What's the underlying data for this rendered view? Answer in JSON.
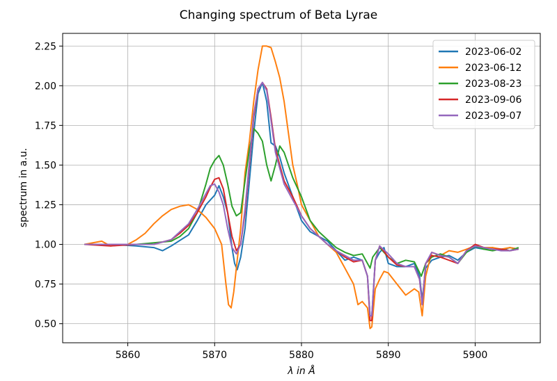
{
  "chart_data": {
    "type": "line",
    "title": "Changing spectrum of Beta Lyrae",
    "xlabel": "λ in Å",
    "ylabel": "spectrum in a.u.",
    "xlim": [
      5852.5,
      5907.5
    ],
    "ylim": [
      0.38,
      2.33
    ],
    "xticks": [
      5860,
      5870,
      5880,
      5890,
      5900
    ],
    "yticks": [
      0.5,
      0.75,
      1.0,
      1.25,
      1.5,
      1.75,
      2.0,
      2.25
    ],
    "xtick_labels": [
      "5860",
      "5870",
      "5880",
      "5890",
      "5900"
    ],
    "ytick_labels": [
      "0.50",
      "0.75",
      "1.00",
      "1.25",
      "1.50",
      "1.75",
      "2.00",
      "2.25"
    ],
    "grid": true,
    "legend_position": "top-right",
    "series": [
      {
        "name": "2023-06-02",
        "color": "#1f77b4",
        "points": [
          [
            5855,
            1.0
          ],
          [
            5858,
            1.0
          ],
          [
            5861,
            0.99
          ],
          [
            5863,
            0.98
          ],
          [
            5864,
            0.96
          ],
          [
            5865,
            0.99
          ],
          [
            5867,
            1.06
          ],
          [
            5868,
            1.15
          ],
          [
            5869,
            1.25
          ],
          [
            5870,
            1.31
          ],
          [
            5870.5,
            1.37
          ],
          [
            5871,
            1.3
          ],
          [
            5871.5,
            1.2
          ],
          [
            5872,
            0.98
          ],
          [
            5872.3,
            0.88
          ],
          [
            5872.6,
            0.84
          ],
          [
            5873,
            0.92
          ],
          [
            5873.5,
            1.1
          ],
          [
            5874,
            1.4
          ],
          [
            5874.5,
            1.7
          ],
          [
            5875,
            1.95
          ],
          [
            5875.5,
            2.02
          ],
          [
            5876,
            1.9
          ],
          [
            5876.5,
            1.64
          ],
          [
            5877,
            1.62
          ],
          [
            5877.5,
            1.55
          ],
          [
            5878,
            1.45
          ],
          [
            5879,
            1.3
          ],
          [
            5880,
            1.15
          ],
          [
            5881,
            1.08
          ],
          [
            5882,
            1.05
          ],
          [
            5883,
            1.02
          ],
          [
            5884,
            0.96
          ],
          [
            5885,
            0.9
          ],
          [
            5886,
            0.92
          ],
          [
            5887,
            0.9
          ],
          [
            5887.6,
            0.8
          ],
          [
            5887.9,
            0.55
          ],
          [
            5888.1,
            0.55
          ],
          [
            5888.5,
            0.9
          ],
          [
            5889,
            0.95
          ],
          [
            5889.5,
            0.98
          ],
          [
            5890,
            0.88
          ],
          [
            5891,
            0.86
          ],
          [
            5892,
            0.86
          ],
          [
            5893,
            0.88
          ],
          [
            5893.6,
            0.8
          ],
          [
            5893.9,
            0.65
          ],
          [
            5894.3,
            0.85
          ],
          [
            5895,
            0.9
          ],
          [
            5896,
            0.92
          ],
          [
            5897,
            0.93
          ],
          [
            5898,
            0.9
          ],
          [
            5899,
            0.95
          ],
          [
            5900,
            0.98
          ],
          [
            5901,
            0.97
          ],
          [
            5902,
            0.98
          ],
          [
            5903,
            0.96
          ],
          [
            5904,
            0.98
          ],
          [
            5905,
            0.97
          ]
        ]
      },
      {
        "name": "2023-06-12",
        "color": "#ff7f0e",
        "points": [
          [
            5855,
            1.0
          ],
          [
            5857,
            1.02
          ],
          [
            5858,
            0.99
          ],
          [
            5860,
            1.0
          ],
          [
            5861,
            1.03
          ],
          [
            5862,
            1.07
          ],
          [
            5863,
            1.13
          ],
          [
            5864,
            1.18
          ],
          [
            5865,
            1.22
          ],
          [
            5866,
            1.24
          ],
          [
            5867,
            1.25
          ],
          [
            5868,
            1.22
          ],
          [
            5869,
            1.17
          ],
          [
            5870,
            1.1
          ],
          [
            5870.8,
            1.0
          ],
          [
            5871.3,
            0.75
          ],
          [
            5871.6,
            0.62
          ],
          [
            5871.9,
            0.6
          ],
          [
            5872.2,
            0.7
          ],
          [
            5872.6,
            0.9
          ],
          [
            5873,
            1.1
          ],
          [
            5873.5,
            1.45
          ],
          [
            5874,
            1.65
          ],
          [
            5874.5,
            1.9
          ],
          [
            5875,
            2.1
          ],
          [
            5875.5,
            2.25
          ],
          [
            5876,
            2.25
          ],
          [
            5876.5,
            2.24
          ],
          [
            5877,
            2.15
          ],
          [
            5877.5,
            2.05
          ],
          [
            5878,
            1.9
          ],
          [
            5878.5,
            1.7
          ],
          [
            5879,
            1.5
          ],
          [
            5879.5,
            1.38
          ],
          [
            5880,
            1.25
          ],
          [
            5881,
            1.15
          ],
          [
            5882,
            1.05
          ],
          [
            5883,
            1.0
          ],
          [
            5884,
            0.95
          ],
          [
            5885,
            0.85
          ],
          [
            5886,
            0.75
          ],
          [
            5886.5,
            0.62
          ],
          [
            5887,
            0.64
          ],
          [
            5887.6,
            0.6
          ],
          [
            5887.9,
            0.47
          ],
          [
            5888.1,
            0.48
          ],
          [
            5888.5,
            0.72
          ],
          [
            5889,
            0.78
          ],
          [
            5889.5,
            0.83
          ],
          [
            5890,
            0.82
          ],
          [
            5891,
            0.75
          ],
          [
            5892,
            0.68
          ],
          [
            5893,
            0.72
          ],
          [
            5893.5,
            0.7
          ],
          [
            5893.9,
            0.55
          ],
          [
            5894.3,
            0.8
          ],
          [
            5895,
            0.95
          ],
          [
            5896,
            0.93
          ],
          [
            5897,
            0.96
          ],
          [
            5898,
            0.95
          ],
          [
            5899,
            0.97
          ],
          [
            5900,
            0.99
          ],
          [
            5901,
            0.98
          ],
          [
            5902,
            0.98
          ],
          [
            5903,
            0.97
          ],
          [
            5904,
            0.98
          ],
          [
            5905,
            0.97
          ]
        ]
      },
      {
        "name": "2023-08-23",
        "color": "#2ca02c",
        "points": [
          [
            5855,
            1.0
          ],
          [
            5858,
            1.0
          ],
          [
            5861,
            1.0
          ],
          [
            5863,
            1.01
          ],
          [
            5865,
            1.02
          ],
          [
            5866,
            1.05
          ],
          [
            5867,
            1.1
          ],
          [
            5868,
            1.2
          ],
          [
            5869,
            1.38
          ],
          [
            5869.5,
            1.48
          ],
          [
            5870,
            1.53
          ],
          [
            5870.5,
            1.56
          ],
          [
            5871,
            1.5
          ],
          [
            5871.5,
            1.38
          ],
          [
            5872,
            1.24
          ],
          [
            5872.5,
            1.18
          ],
          [
            5873,
            1.2
          ],
          [
            5873.5,
            1.4
          ],
          [
            5874,
            1.6
          ],
          [
            5874.5,
            1.73
          ],
          [
            5875,
            1.7
          ],
          [
            5875.5,
            1.65
          ],
          [
            5876,
            1.5
          ],
          [
            5876.5,
            1.4
          ],
          [
            5877,
            1.5
          ],
          [
            5877.5,
            1.62
          ],
          [
            5878,
            1.58
          ],
          [
            5879,
            1.42
          ],
          [
            5880,
            1.3
          ],
          [
            5881,
            1.15
          ],
          [
            5882,
            1.08
          ],
          [
            5883,
            1.03
          ],
          [
            5884,
            0.98
          ],
          [
            5885,
            0.95
          ],
          [
            5886,
            0.93
          ],
          [
            5887,
            0.94
          ],
          [
            5887.6,
            0.88
          ],
          [
            5887.9,
            0.85
          ],
          [
            5888.2,
            0.92
          ],
          [
            5888.6,
            0.95
          ],
          [
            5889,
            0.98
          ],
          [
            5890,
            0.92
          ],
          [
            5891,
            0.88
          ],
          [
            5892,
            0.9
          ],
          [
            5893,
            0.89
          ],
          [
            5893.8,
            0.8
          ],
          [
            5894.3,
            0.88
          ],
          [
            5895,
            0.92
          ],
          [
            5896,
            0.94
          ],
          [
            5897,
            0.92
          ],
          [
            5898,
            0.88
          ],
          [
            5899,
            0.95
          ],
          [
            5900,
            0.99
          ],
          [
            5901,
            0.97
          ],
          [
            5902,
            0.96
          ],
          [
            5903,
            0.97
          ],
          [
            5904,
            0.96
          ],
          [
            5905,
            0.98
          ]
        ]
      },
      {
        "name": "2023-09-06",
        "color": "#d62728",
        "points": [
          [
            5855,
            1.0
          ],
          [
            5858,
            0.99
          ],
          [
            5861,
            1.0
          ],
          [
            5863,
            1.0
          ],
          [
            5865,
            1.03
          ],
          [
            5866,
            1.07
          ],
          [
            5867,
            1.12
          ],
          [
            5868,
            1.2
          ],
          [
            5869,
            1.3
          ],
          [
            5869.5,
            1.36
          ],
          [
            5870,
            1.41
          ],
          [
            5870.5,
            1.42
          ],
          [
            5871,
            1.35
          ],
          [
            5871.5,
            1.2
          ],
          [
            5872,
            1.05
          ],
          [
            5872.5,
            0.96
          ],
          [
            5873,
            1.0
          ],
          [
            5873.5,
            1.2
          ],
          [
            5874,
            1.5
          ],
          [
            5874.5,
            1.8
          ],
          [
            5875,
            1.98
          ],
          [
            5875.5,
            2.02
          ],
          [
            5876,
            1.98
          ],
          [
            5876.5,
            1.8
          ],
          [
            5877,
            1.6
          ],
          [
            5877.5,
            1.5
          ],
          [
            5878,
            1.4
          ],
          [
            5879,
            1.3
          ],
          [
            5880,
            1.18
          ],
          [
            5881,
            1.1
          ],
          [
            5882,
            1.05
          ],
          [
            5883,
            1.0
          ],
          [
            5884,
            0.96
          ],
          [
            5885,
            0.92
          ],
          [
            5886,
            0.89
          ],
          [
            5887,
            0.9
          ],
          [
            5887.6,
            0.8
          ],
          [
            5887.9,
            0.52
          ],
          [
            5888.1,
            0.52
          ],
          [
            5888.5,
            0.9
          ],
          [
            5889,
            0.99
          ],
          [
            5890,
            0.92
          ],
          [
            5891,
            0.87
          ],
          [
            5892,
            0.86
          ],
          [
            5893,
            0.86
          ],
          [
            5893.6,
            0.78
          ],
          [
            5893.9,
            0.62
          ],
          [
            5894.3,
            0.88
          ],
          [
            5895,
            0.93
          ],
          [
            5896,
            0.92
          ],
          [
            5897,
            0.9
          ],
          [
            5898,
            0.88
          ],
          [
            5899,
            0.96
          ],
          [
            5900,
            1.0
          ],
          [
            5901,
            0.98
          ],
          [
            5902,
            0.97
          ],
          [
            5903,
            0.97
          ],
          [
            5904,
            0.96
          ],
          [
            5905,
            0.97
          ]
        ]
      },
      {
        "name": "2023-09-07",
        "color": "#9467bd",
        "points": [
          [
            5855,
            1.0
          ],
          [
            5858,
            1.0
          ],
          [
            5861,
            1.0
          ],
          [
            5863,
            1.0
          ],
          [
            5865,
            1.03
          ],
          [
            5866,
            1.08
          ],
          [
            5867,
            1.13
          ],
          [
            5868,
            1.22
          ],
          [
            5869,
            1.32
          ],
          [
            5869.5,
            1.37
          ],
          [
            5870,
            1.38
          ],
          [
            5870.5,
            1.33
          ],
          [
            5871,
            1.25
          ],
          [
            5871.5,
            1.1
          ],
          [
            5872,
            0.98
          ],
          [
            5872.5,
            0.94
          ],
          [
            5873,
            1.0
          ],
          [
            5873.5,
            1.22
          ],
          [
            5874,
            1.52
          ],
          [
            5874.5,
            1.82
          ],
          [
            5875,
            1.98
          ],
          [
            5875.5,
            2.02
          ],
          [
            5876,
            1.97
          ],
          [
            5876.5,
            1.78
          ],
          [
            5877,
            1.58
          ],
          [
            5877.5,
            1.48
          ],
          [
            5878,
            1.38
          ],
          [
            5879,
            1.28
          ],
          [
            5880,
            1.18
          ],
          [
            5881,
            1.1
          ],
          [
            5882,
            1.05
          ],
          [
            5883,
            1.0
          ],
          [
            5884,
            0.96
          ],
          [
            5885,
            0.93
          ],
          [
            5886,
            0.9
          ],
          [
            5887,
            0.9
          ],
          [
            5887.6,
            0.8
          ],
          [
            5887.9,
            0.55
          ],
          [
            5888.1,
            0.55
          ],
          [
            5888.5,
            0.9
          ],
          [
            5889,
            0.99
          ],
          [
            5890,
            0.94
          ],
          [
            5891,
            0.88
          ],
          [
            5892,
            0.86
          ],
          [
            5893,
            0.86
          ],
          [
            5893.6,
            0.78
          ],
          [
            5893.9,
            0.62
          ],
          [
            5894.3,
            0.88
          ],
          [
            5895,
            0.95
          ],
          [
            5896,
            0.93
          ],
          [
            5897,
            0.92
          ],
          [
            5898,
            0.88
          ],
          [
            5899,
            0.96
          ],
          [
            5900,
            0.99
          ],
          [
            5901,
            0.98
          ],
          [
            5902,
            0.97
          ],
          [
            5903,
            0.96
          ],
          [
            5904,
            0.96
          ],
          [
            5905,
            0.97
          ]
        ]
      }
    ]
  }
}
